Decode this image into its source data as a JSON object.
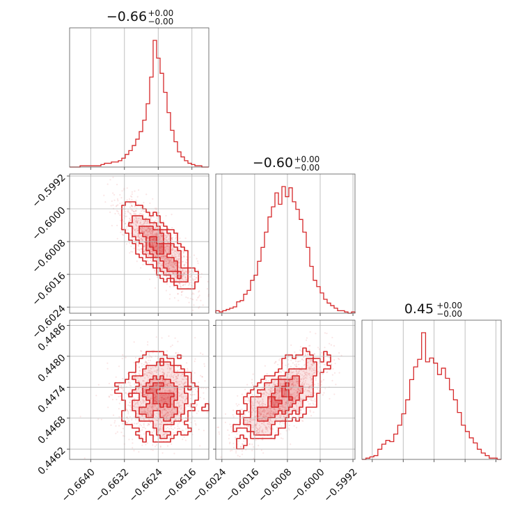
{
  "chart_data": {
    "type": "corner",
    "color": "#d62728",
    "grid": true,
    "parameters": [
      {
        "title": {
          "value": "−0.66",
          "plus": "+0.00",
          "minus": "−0.00"
        },
        "range": [
          -0.6645,
          -0.6612
        ],
        "ticks": [
          -0.664,
          -0.6632,
          -0.6624,
          -0.6616
        ],
        "tick_labels": [
          "−0.6640",
          "−0.6632",
          "−0.6624",
          "−0.6616"
        ],
        "center": -0.66238,
        "spread": 0.00045,
        "histogram": [
          0,
          0,
          0,
          1,
          1,
          1,
          1,
          1,
          1,
          2,
          3,
          3,
          4,
          4,
          5,
          7,
          10,
          13,
          17,
          22,
          28,
          37,
          50,
          71,
          100,
          86,
          74,
          59,
          43,
          29,
          20,
          12,
          8,
          5,
          3,
          2,
          1,
          1,
          0,
          0
        ]
      },
      {
        "title": {
          "value": "−0.60",
          "plus": "+0.00",
          "minus": "−0.00"
        },
        "range": [
          -0.60255,
          -0.59915
        ],
        "ticks": [
          -0.6024,
          -0.6016,
          -0.6008,
          -0.6,
          -0.5992
        ],
        "tick_labels": [
          "−0.6024",
          "−0.6016",
          "−0.6008",
          "−0.6000",
          "−0.5992"
        ],
        "center": -0.60094,
        "spread": 0.00055,
        "histogram": [
          2,
          1,
          2,
          3,
          4,
          5,
          9,
          10,
          15,
          18,
          26,
          30,
          41,
          52,
          64,
          76,
          84,
          95,
          86,
          100,
          92,
          99,
          88,
          82,
          74,
          64,
          52,
          37,
          26,
          21,
          16,
          11,
          8,
          6,
          4,
          2,
          2,
          1,
          0,
          1
        ]
      },
      {
        "title": {
          "value": "0.45",
          "plus": "+0.00",
          "minus": "−0.00"
        },
        "range": [
          0.446,
          0.4487
        ],
        "ticks": [
          0.4462,
          0.4468,
          0.4474,
          0.448,
          0.4486
        ],
        "tick_labels": [
          "0.4462",
          "0.4468",
          "0.4474",
          "0.4480",
          "0.4486"
        ],
        "center": 0.4472,
        "spread": 0.00042,
        "histogram": [
          0,
          1,
          2,
          3,
          8,
          12,
          15,
          14,
          20,
          27,
          36,
          47,
          63,
          73,
          79,
          100,
          77,
          80,
          76,
          67,
          72,
          64,
          55,
          47,
          37,
          27,
          22,
          17,
          13,
          8,
          5,
          3,
          1,
          1,
          0
        ]
      }
    ],
    "correlations": [
      {
        "row": 1,
        "col": 0,
        "rho": -0.8
      },
      {
        "row": 2,
        "col": 0,
        "rho": 0.0
      },
      {
        "row": 2,
        "col": 1,
        "rho": 0.7
      }
    ]
  }
}
